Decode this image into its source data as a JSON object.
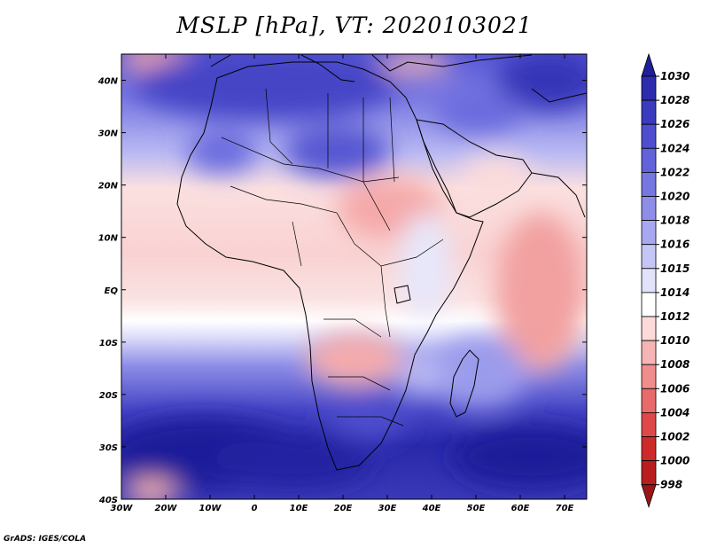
{
  "title": "MSLP [hPa], VT: 2020103021",
  "credit": "GrADS: IGES/COLA",
  "lon_labels": [
    "30W",
    "20W",
    "10W",
    "0",
    "10E",
    "20E",
    "30E",
    "40E",
    "50E",
    "60E",
    "70E"
  ],
  "lon_values": [
    -30,
    -20,
    -10,
    0,
    10,
    20,
    30,
    40,
    50,
    60,
    70
  ],
  "lat_labels": [
    "40N",
    "30N",
    "20N",
    "10N",
    "EQ",
    "10S",
    "20S",
    "30S",
    "40S"
  ],
  "lat_values": [
    40,
    30,
    20,
    10,
    0,
    -10,
    -20,
    -30,
    -40
  ],
  "extent": {
    "lon_min": -30,
    "lon_max": 75,
    "lat_min": -40,
    "lat_max": 45
  },
  "colorbar": {
    "levels": [
      "1030",
      "1028",
      "1026",
      "1024",
      "1022",
      "1020",
      "1018",
      "1016",
      "1015",
      "1014",
      "1012",
      "1010",
      "1008",
      "1006",
      "1004",
      "1002",
      "1000",
      "998"
    ],
    "colors": [
      "#1f1f9a",
      "#2c2cae",
      "#3b3bc0",
      "#4e4ed0",
      "#6262da",
      "#7777e2",
      "#8e8ee9",
      "#a8a8f0",
      "#c6c6f6",
      "#e2e2fb",
      "#ffffff",
      "#fcdada",
      "#f6b4b4",
      "#f08d8d",
      "#e86a6a",
      "#df4848",
      "#cf2a2a",
      "#b81e1e",
      "#9b1515"
    ]
  }
}
